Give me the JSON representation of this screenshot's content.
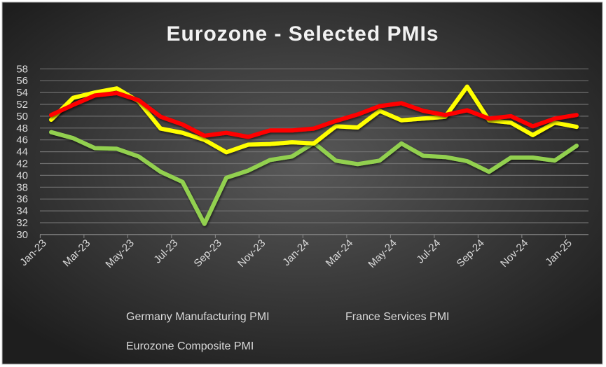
{
  "chart_data": {
    "type": "line",
    "title": "Eurozone - Selected PMIs",
    "xlabel": "",
    "ylabel": "",
    "ylim": [
      30,
      58
    ],
    "ytick_step": 2,
    "grid": true,
    "legend_position": "bottom",
    "x": [
      "Jan-23",
      "Feb-23",
      "Mar-23",
      "Apr-23",
      "May-23",
      "Jun-23",
      "Jul-23",
      "Aug-23",
      "Sep-23",
      "Oct-23",
      "Nov-23",
      "Dec-23",
      "Jan-24",
      "Feb-24",
      "Mar-24",
      "Apr-24",
      "May-24",
      "Jun-24",
      "Jul-24",
      "Aug-24",
      "Sep-24",
      "Oct-24",
      "Nov-24",
      "Dec-24",
      "Jan-25"
    ],
    "x_tick_labels": [
      "Jan-23",
      "Mar-23",
      "May-23",
      "Jul-23",
      "Sep-23",
      "Nov-23",
      "Jan-24",
      "Mar-24",
      "May-24",
      "Jul-24",
      "Sep-24",
      "Nov-24",
      "Jan-25"
    ],
    "series": [
      {
        "name": "Germany Manufacturing PMI",
        "color": "#92d050",
        "values": [
          47.3,
          46.3,
          44.6,
          44.5,
          43.2,
          40.6,
          38.9,
          31.8,
          39.6,
          40.8,
          42.6,
          43.2,
          45.5,
          42.5,
          41.9,
          42.5,
          45.4,
          43.3,
          43.1,
          42.4,
          40.6,
          43.0,
          43.0,
          42.5,
          45.0
        ]
      },
      {
        "name": "France Services PMI",
        "color": "#ffff00",
        "values": [
          49.4,
          53.1,
          54.0,
          54.7,
          52.5,
          47.9,
          47.2,
          46.0,
          43.9,
          45.2,
          45.3,
          45.6,
          45.4,
          48.3,
          48.1,
          50.9,
          49.3,
          49.6,
          49.9,
          55.0,
          49.3,
          48.9,
          46.8,
          48.9,
          48.2
        ]
      },
      {
        "name": "Eurozone Composite PMI",
        "color": "#ff0000",
        "values": [
          50.2,
          51.9,
          53.5,
          53.9,
          52.7,
          49.9,
          48.6,
          46.7,
          47.2,
          46.5,
          47.6,
          47.6,
          47.9,
          49.2,
          50.3,
          51.7,
          52.2,
          50.9,
          50.2,
          51.0,
          49.6,
          50.0,
          48.3,
          49.6,
          50.2
        ]
      }
    ]
  }
}
